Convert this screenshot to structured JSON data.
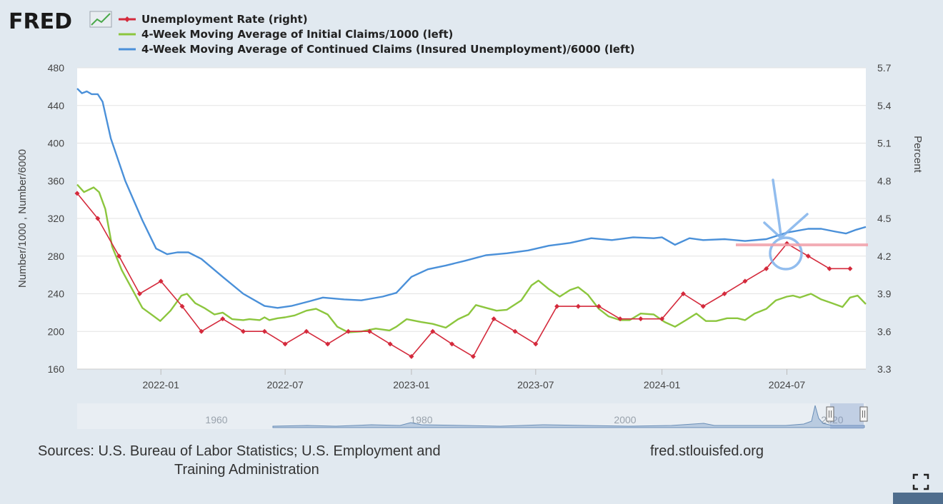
{
  "logo": {
    "text": "FRED"
  },
  "chart_data": {
    "type": "line",
    "title": "",
    "legend_position": "top-left",
    "grid": true,
    "x_axis": {
      "type": "date",
      "range": [
        "2021-09-01",
        "2024-10-24"
      ],
      "ticks": [
        "2022-01",
        "2022-07",
        "2023-01",
        "2023-07",
        "2024-01",
        "2024-07"
      ]
    },
    "y_left": {
      "label": "Number/1000 , Number/6000",
      "range": [
        160,
        480
      ],
      "ticks": [
        160,
        200,
        240,
        280,
        320,
        360,
        400,
        440,
        480
      ]
    },
    "y_right": {
      "label": "Percent",
      "range": [
        3.3,
        5.7
      ],
      "ticks": [
        "3.3",
        "3.6",
        "3.9",
        "4.2",
        "4.5",
        "4.8",
        "5.1",
        "5.4",
        "5.7"
      ]
    },
    "series": [
      {
        "name": "Unemployment Rate (right)",
        "axis": "right",
        "color": "#d42a3c",
        "markers": true,
        "points": [
          [
            "2021-09-01",
            4.7
          ],
          [
            "2021-10-01",
            4.5
          ],
          [
            "2021-11-01",
            4.2
          ],
          [
            "2021-12-01",
            3.9
          ],
          [
            "2022-01-01",
            4.0
          ],
          [
            "2022-02-01",
            3.8
          ],
          [
            "2022-03-01",
            3.6
          ],
          [
            "2022-04-01",
            3.7
          ],
          [
            "2022-05-01",
            3.6
          ],
          [
            "2022-06-01",
            3.6
          ],
          [
            "2022-07-01",
            3.5
          ],
          [
            "2022-08-01",
            3.6
          ],
          [
            "2022-09-01",
            3.5
          ],
          [
            "2022-10-01",
            3.6
          ],
          [
            "2022-11-01",
            3.6
          ],
          [
            "2022-12-01",
            3.5
          ],
          [
            "2023-01-01",
            3.4
          ],
          [
            "2023-02-01",
            3.6
          ],
          [
            "2023-03-01",
            3.5
          ],
          [
            "2023-04-01",
            3.4
          ],
          [
            "2023-05-01",
            3.7
          ],
          [
            "2023-06-01",
            3.6
          ],
          [
            "2023-07-01",
            3.5
          ],
          [
            "2023-08-01",
            3.8
          ],
          [
            "2023-09-01",
            3.8
          ],
          [
            "2023-10-01",
            3.8
          ],
          [
            "2023-11-01",
            3.7
          ],
          [
            "2023-12-01",
            3.7
          ],
          [
            "2024-01-01",
            3.7
          ],
          [
            "2024-02-01",
            3.9
          ],
          [
            "2024-03-01",
            3.8
          ],
          [
            "2024-04-01",
            3.9
          ],
          [
            "2024-05-01",
            4.0
          ],
          [
            "2024-06-01",
            4.1
          ],
          [
            "2024-07-01",
            4.3
          ],
          [
            "2024-08-01",
            4.2
          ],
          [
            "2024-09-01",
            4.1
          ],
          [
            "2024-10-01",
            4.1
          ]
        ]
      },
      {
        "name": "4-Week Moving Average of Initial Claims/1000 (left)",
        "axis": "left",
        "color": "#8cc63e",
        "markers": false,
        "points": [
          [
            "2021-09-01",
            356
          ],
          [
            "2021-09-11",
            348
          ],
          [
            "2021-09-25",
            353
          ],
          [
            "2021-10-03",
            348
          ],
          [
            "2021-10-12",
            330
          ],
          [
            "2021-10-22",
            290
          ],
          [
            "2021-11-05",
            265
          ],
          [
            "2021-11-20",
            245
          ],
          [
            "2021-12-05",
            225
          ],
          [
            "2021-12-20",
            217
          ],
          [
            "2021-12-31",
            211
          ],
          [
            "2022-01-15",
            222
          ],
          [
            "2022-01-31",
            238
          ],
          [
            "2022-02-08",
            240
          ],
          [
            "2022-02-20",
            230
          ],
          [
            "2022-03-05",
            225
          ],
          [
            "2022-03-20",
            218
          ],
          [
            "2022-04-01",
            220
          ],
          [
            "2022-04-15",
            213
          ],
          [
            "2022-05-01",
            212
          ],
          [
            "2022-05-10",
            213
          ],
          [
            "2022-05-25",
            212
          ],
          [
            "2022-06-01",
            215
          ],
          [
            "2022-06-08",
            212
          ],
          [
            "2022-06-20",
            214
          ],
          [
            "2022-07-01",
            215
          ],
          [
            "2022-07-15",
            217
          ],
          [
            "2022-08-01",
            222
          ],
          [
            "2022-08-15",
            224
          ],
          [
            "2022-09-01",
            218
          ],
          [
            "2022-09-15",
            205
          ],
          [
            "2022-10-01",
            199
          ],
          [
            "2022-10-20",
            200
          ],
          [
            "2022-11-10",
            203
          ],
          [
            "2022-11-30",
            201
          ],
          [
            "2022-12-10",
            205
          ],
          [
            "2022-12-25",
            213
          ],
          [
            "2023-01-15",
            210
          ],
          [
            "2023-02-01",
            208
          ],
          [
            "2023-02-20",
            204
          ],
          [
            "2023-03-10",
            213
          ],
          [
            "2023-03-25",
            218
          ],
          [
            "2023-04-05",
            228
          ],
          [
            "2023-04-20",
            225
          ],
          [
            "2023-05-05",
            222
          ],
          [
            "2023-05-20",
            223
          ],
          [
            "2023-06-10",
            233
          ],
          [
            "2023-06-25",
            249
          ],
          [
            "2023-07-05",
            254
          ],
          [
            "2023-07-20",
            245
          ],
          [
            "2023-08-05",
            237
          ],
          [
            "2023-08-20",
            244
          ],
          [
            "2023-09-01",
            247
          ],
          [
            "2023-09-15",
            239
          ],
          [
            "2023-10-01",
            224
          ],
          [
            "2023-10-15",
            216
          ],
          [
            "2023-11-01",
            212
          ],
          [
            "2023-11-15",
            212
          ],
          [
            "2023-12-01",
            219
          ],
          [
            "2023-12-20",
            218
          ],
          [
            "2024-01-05",
            210
          ],
          [
            "2024-01-20",
            205
          ],
          [
            "2024-02-05",
            212
          ],
          [
            "2024-02-20",
            219
          ],
          [
            "2024-03-05",
            211
          ],
          [
            "2024-03-20",
            211
          ],
          [
            "2024-04-05",
            214
          ],
          [
            "2024-04-20",
            214
          ],
          [
            "2024-05-01",
            212
          ],
          [
            "2024-05-15",
            219
          ],
          [
            "2024-06-01",
            224
          ],
          [
            "2024-06-15",
            233
          ],
          [
            "2024-07-01",
            237
          ],
          [
            "2024-07-10",
            238
          ],
          [
            "2024-07-20",
            236
          ],
          [
            "2024-08-05",
            240
          ],
          [
            "2024-08-20",
            234
          ],
          [
            "2024-09-05",
            230
          ],
          [
            "2024-09-20",
            226
          ],
          [
            "2024-10-01",
            236
          ],
          [
            "2024-10-12",
            238
          ],
          [
            "2024-10-24",
            229
          ]
        ]
      },
      {
        "name": "4-Week Moving Average of Continued Claims (Insured Unemployment)/6000 (left)",
        "axis": "left",
        "color": "#4a90d9",
        "markers": false,
        "points": [
          [
            "2021-09-01",
            458
          ],
          [
            "2021-09-08",
            453
          ],
          [
            "2021-09-15",
            455
          ],
          [
            "2021-09-22",
            452
          ],
          [
            "2021-10-01",
            452
          ],
          [
            "2021-10-08",
            444
          ],
          [
            "2021-10-20",
            405
          ],
          [
            "2021-11-10",
            360
          ],
          [
            "2021-12-05",
            318
          ],
          [
            "2021-12-25",
            288
          ],
          [
            "2022-01-10",
            282
          ],
          [
            "2022-01-25",
            284
          ],
          [
            "2022-02-10",
            284
          ],
          [
            "2022-03-01",
            277
          ],
          [
            "2022-04-01",
            258
          ],
          [
            "2022-05-01",
            240
          ],
          [
            "2022-06-01",
            227
          ],
          [
            "2022-06-20",
            225
          ],
          [
            "2022-07-10",
            227
          ],
          [
            "2022-08-05",
            232
          ],
          [
            "2022-08-25",
            236
          ],
          [
            "2022-09-25",
            234
          ],
          [
            "2022-10-20",
            233
          ],
          [
            "2022-11-20",
            237
          ],
          [
            "2022-12-10",
            241
          ],
          [
            "2023-01-01",
            258
          ],
          [
            "2023-01-25",
            266
          ],
          [
            "2023-02-20",
            270
          ],
          [
            "2023-03-20",
            275
          ],
          [
            "2023-04-20",
            281
          ],
          [
            "2023-05-20",
            283
          ],
          [
            "2023-06-20",
            286
          ],
          [
            "2023-07-20",
            291
          ],
          [
            "2023-08-20",
            294
          ],
          [
            "2023-09-20",
            299
          ],
          [
            "2023-10-20",
            297
          ],
          [
            "2023-11-20",
            300
          ],
          [
            "2023-12-20",
            299
          ],
          [
            "2024-01-01",
            300
          ],
          [
            "2024-01-20",
            292
          ],
          [
            "2024-02-10",
            299
          ],
          [
            "2024-03-01",
            297
          ],
          [
            "2024-04-01",
            298
          ],
          [
            "2024-05-01",
            296
          ],
          [
            "2024-06-01",
            298
          ],
          [
            "2024-07-01",
            305
          ],
          [
            "2024-08-01",
            309
          ],
          [
            "2024-08-20",
            309
          ],
          [
            "2024-09-10",
            306
          ],
          [
            "2024-09-25",
            304
          ],
          [
            "2024-10-10",
            308
          ],
          [
            "2024-10-24",
            311
          ]
        ]
      }
    ],
    "navigator": {
      "labels": [
        "1960",
        "1980",
        "2000",
        "2020"
      ]
    }
  },
  "sources": {
    "line1": "Sources: U.S. Bureau of Labor Statistics; U.S. Employment and",
    "line2": "Training Administration",
    "url": "fred.stlouisfed.org"
  }
}
